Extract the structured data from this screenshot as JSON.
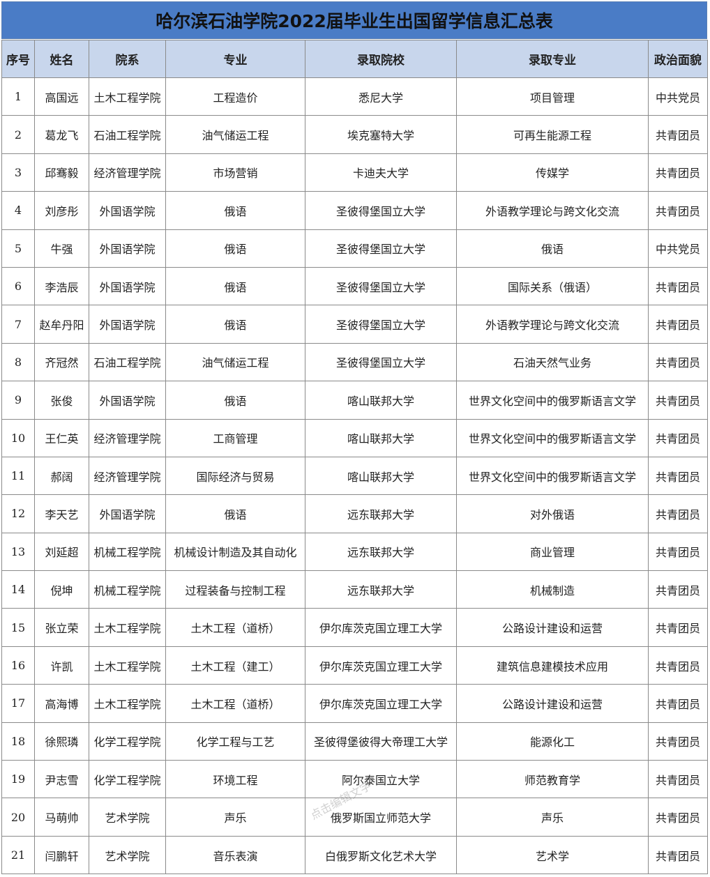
{
  "header": {
    "title": "哈尔滨石油学院2022届毕业生出国留学信息汇总表"
  },
  "table": {
    "columns": [
      "序号",
      "姓名",
      "院系",
      "专业",
      "录取院校",
      "录取专业",
      "政治面貌"
    ],
    "rows": [
      [
        "1",
        "高国远",
        "土木工程学院",
        "工程造价",
        "悉尼大学",
        "项目管理",
        "中共党员"
      ],
      [
        "2",
        "葛龙飞",
        "石油工程学院",
        "油气储运工程",
        "埃克塞特大学",
        "可再生能源工程",
        "共青团员"
      ],
      [
        "3",
        "邱骞毅",
        "经济管理学院",
        "市场营销",
        "卡迪夫大学",
        "传媒学",
        "共青团员"
      ],
      [
        "4",
        "刘彦彤",
        "外国语学院",
        "俄语",
        "圣彼得堡国立大学",
        "外语教学理论与跨文化交流",
        "共青团员"
      ],
      [
        "5",
        "牛强",
        "外国语学院",
        "俄语",
        "圣彼得堡国立大学",
        "俄语",
        "中共党员"
      ],
      [
        "6",
        "李浩辰",
        "外国语学院",
        "俄语",
        "圣彼得堡国立大学",
        "国际关系（俄语）",
        "共青团员"
      ],
      [
        "7",
        "赵牟丹阳",
        "外国语学院",
        "俄语",
        "圣彼得堡国立大学",
        "外语教学理论与跨文化交流",
        "共青团员"
      ],
      [
        "8",
        "齐冠然",
        "石油工程学院",
        "油气储运工程",
        "圣彼得堡国立大学",
        "石油天然气业务",
        "共青团员"
      ],
      [
        "9",
        "张俊",
        "外国语学院",
        "俄语",
        "喀山联邦大学",
        "世界文化空间中的俄罗斯语言文学",
        "共青团员"
      ],
      [
        "10",
        "王仁英",
        "经济管理学院",
        "工商管理",
        "喀山联邦大学",
        "世界文化空间中的俄罗斯语言文学",
        "共青团员"
      ],
      [
        "11",
        "郝阔",
        "经济管理学院",
        "国际经济与贸易",
        "喀山联邦大学",
        "世界文化空间中的俄罗斯语言文学",
        "共青团员"
      ],
      [
        "12",
        "李天艺",
        "外国语学院",
        "俄语",
        "远东联邦大学",
        "对外俄语",
        "共青团员"
      ],
      [
        "13",
        "刘延超",
        "机械工程学院",
        "机械设计制造及其自动化",
        "远东联邦大学",
        "商业管理",
        "共青团员"
      ],
      [
        "14",
        "倪坤",
        "机械工程学院",
        "过程装备与控制工程",
        "远东联邦大学",
        "机械制造",
        "共青团员"
      ],
      [
        "15",
        "张立荣",
        "土木工程学院",
        "土木工程（道桥）",
        "伊尔库茨克国立理工大学",
        "公路设计建设和运营",
        "共青团员"
      ],
      [
        "16",
        "许凯",
        "土木工程学院",
        "土木工程（建工）",
        "伊尔库茨克国立理工大学",
        "建筑信息建模技术应用",
        "共青团员"
      ],
      [
        "17",
        "高海博",
        "土木工程学院",
        "土木工程（道桥）",
        "伊尔库茨克国立理工大学",
        "公路设计建设和运营",
        "共青团员"
      ],
      [
        "18",
        "徐熙璘",
        "化学工程学院",
        "化学工程与工艺",
        "圣彼得堡彼得大帝理工大学",
        "能源化工",
        "共青团员"
      ],
      [
        "19",
        "尹志雪",
        "化学工程学院",
        "环境工程",
        "阿尔泰国立大学",
        "师范教育学",
        "共青团员"
      ],
      [
        "20",
        "马萌帅",
        "艺术学院",
        "声乐",
        "俄罗斯国立师范大学",
        "声乐",
        "共青团员"
      ],
      [
        "21",
        "闫鹏轩",
        "艺术学院",
        "音乐表演",
        "白俄罗斯文化艺术大学",
        "艺术学",
        "共青团员"
      ]
    ]
  },
  "watermark": "点击编辑文字"
}
